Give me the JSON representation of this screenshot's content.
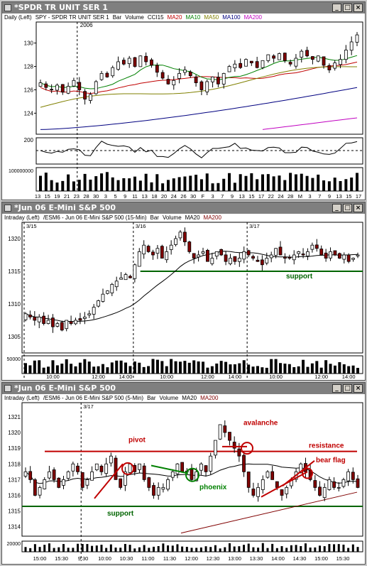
{
  "windows": [
    {
      "title": "*SPDR TR UNIT SER 1",
      "info": [
        "Daily (Left)",
        "SPY - SPDR TR UNIT SER 1",
        "Bar",
        "Volume",
        "CCI15",
        "MA20",
        "MA10",
        "MA50",
        "MA100",
        "MA200"
      ],
      "info_colors": [
        "#000",
        "#000",
        "#000",
        "#000",
        "#000",
        "#c00000",
        "#008000",
        "#808000",
        "#000080",
        "#c000c0"
      ]
    },
    {
      "title": "*Jun 06  E-Mini S&P 500",
      "info": [
        "Intraday (Left)",
        "/ESM6 - Jun 06  E-Mini S&P 500 (15-Min)",
        "Bar",
        "Volume",
        "MA20",
        "MA200"
      ],
      "info_colors": [
        "#000",
        "#000",
        "#000",
        "#000",
        "#000",
        "#800000"
      ]
    },
    {
      "title": "*Jun 06  E-Mini S&P 500",
      "info": [
        "Intraday (Left)",
        "/ESM6 - Jun 06  E-Mini S&P 500 (5-Min)",
        "Bar",
        "Volume",
        "MA20",
        "MA200"
      ],
      "info_colors": [
        "#000",
        "#000",
        "#000",
        "#000",
        "#000",
        "#800000"
      ]
    }
  ],
  "chart_data": [
    {
      "type": "candlestick",
      "interval": "Daily",
      "year_marker": "2006",
      "y_ticks": [
        124,
        126,
        128,
        130
      ],
      "ylim": [
        122.2,
        131.8
      ],
      "x_ticks": [
        "13",
        "15",
        "19",
        "21",
        "23",
        "28",
        "30",
        "3",
        "5",
        "9",
        "11",
        "13",
        "18",
        "20",
        "24",
        "26",
        "30",
        "F",
        "3",
        "7",
        "9",
        "13",
        "15",
        "17",
        "22",
        "24",
        "28",
        "M",
        "3",
        "7",
        "9",
        "13",
        "15",
        "17"
      ],
      "close": [
        126.6,
        126.2,
        126.0,
        126.4,
        125.8,
        126.3,
        126.8,
        126.0,
        125.2,
        125.6,
        126.7,
        127.4,
        127.1,
        127.9,
        128.4,
        128.2,
        128.7,
        128.0,
        128.9,
        128.4,
        128.1,
        127.5,
        127.0,
        126.5,
        126.8,
        127.4,
        127.7,
        127.2,
        126.6,
        126.0,
        126.7,
        127.1,
        126.5,
        127.4,
        128.0,
        128.2,
        127.9,
        128.6,
        128.3,
        127.9,
        128.5,
        129.0,
        128.7,
        129.1,
        128.5,
        128.2,
        128.7,
        129.3,
        128.9,
        128.6,
        128.9,
        128.1,
        127.7,
        128.3,
        128.6,
        129.4,
        130.1,
        130.7
      ],
      "ma_series": [
        {
          "name": "MA10",
          "color": "#008000"
        },
        {
          "name": "MA20",
          "color": "#c00000"
        },
        {
          "name": "MA50",
          "color": "#808000"
        },
        {
          "name": "MA100",
          "color": "#000080"
        },
        {
          "name": "MA200",
          "color": "#c000c0"
        }
      ],
      "cci_tick": "200",
      "volume_tick": "100000000"
    },
    {
      "type": "candlestick",
      "interval": "15-Min",
      "session_labels": [
        "3/15",
        "3/16",
        "3/17"
      ],
      "y_ticks": [
        1305,
        1310,
        1315,
        1320
      ],
      "ylim": [
        1302.5,
        1322.5
      ],
      "x_ticks": [
        "10:00",
        "12:00",
        "14:00",
        "10:00",
        "12:00",
        "14:00",
        "10:00",
        "12:00",
        "14:00"
      ],
      "close": [
        1308.5,
        1308.0,
        1307.5,
        1308.0,
        1307.0,
        1307.5,
        1306.5,
        1307.0,
        1306.0,
        1307.5,
        1307.0,
        1307.5,
        1307.5,
        1308.0,
        1308.5,
        1309.5,
        1310.5,
        1311.5,
        1312.0,
        1313.0,
        1313.5,
        1314.0,
        1314.5,
        1314.0,
        1316.0,
        1318.0,
        1319.0,
        1318.0,
        1317.5,
        1318.5,
        1317.0,
        1318.0,
        1319.0,
        1320.0,
        1321.0,
        1319.5,
        1318.0,
        1317.0,
        1317.5,
        1318.0,
        1316.5,
        1317.0,
        1318.0,
        1317.5,
        1316.5,
        1317.0,
        1316.5,
        1317.0,
        1318.0,
        1317.5,
        1317.0,
        1316.5,
        1316.0,
        1317.0,
        1317.5,
        1318.5,
        1317.5,
        1317.0,
        1317.0,
        1317.5,
        1318.0,
        1317.5,
        1318.0,
        1319.0,
        1318.5,
        1317.5,
        1317.0,
        1318.0,
        1317.5,
        1317.0,
        1317.5,
        1316.5,
        1317.0,
        1317.5
      ],
      "support_level": 1315,
      "annotations": {
        "support": "support"
      },
      "volume_tick": "50000"
    },
    {
      "type": "candlestick",
      "interval": "5-Min",
      "session_label": "3/17",
      "y_ticks": [
        1314,
        1315,
        1316,
        1317,
        1318,
        1319,
        1320,
        1321
      ],
      "ylim": [
        1313.4,
        1321.9
      ],
      "x_ticks": [
        "15:00",
        "15:30",
        "9:30",
        "10:00",
        "10:30",
        "11:00",
        "11:30",
        "12:00",
        "12:30",
        "13:00",
        "13:30",
        "14:00",
        "14:30",
        "15:00",
        "15:30"
      ],
      "close": [
        1317.5,
        1317.0,
        1316.0,
        1316.5,
        1317.0,
        1317.5,
        1317.0,
        1316.5,
        1317.0,
        1317.5,
        1318.0,
        1317.5,
        1316.5,
        1317.0,
        1317.5,
        1318.0,
        1317.5,
        1318.0,
        1318.5,
        1317.0,
        1316.5,
        1317.5,
        1318.0,
        1317.5,
        1318.0,
        1317.0,
        1316.5,
        1316.0,
        1316.5,
        1316.5,
        1317.0,
        1317.5,
        1318.0,
        1317.5,
        1317.5,
        1317.0,
        1317.5,
        1318.0,
        1317.5,
        1318.5,
        1319.5,
        1320.5,
        1320.0,
        1319.5,
        1319.0,
        1318.5,
        1317.5,
        1316.5,
        1316.0,
        1316.5,
        1317.0,
        1317.5,
        1317.0,
        1316.5,
        1316.0,
        1316.5,
        1317.0,
        1317.5,
        1318.0,
        1317.5,
        1317.0,
        1316.5,
        1316.0,
        1316.5,
        1317.0,
        1316.5,
        1316.5,
        1317.0,
        1317.5,
        1317.0,
        1316.5
      ],
      "support_level": 1315.3,
      "resistance_level": 1318.8,
      "annotations": {
        "pivot": "pivot",
        "phoenix": "phoenix",
        "avalanche": "avalanche",
        "resistance": "resistance",
        "bear_flag": "bear flag",
        "support": "support"
      },
      "colors": {
        "annotation": "#c00000",
        "support": "#006400",
        "phoenix": "#008000"
      },
      "volume_tick": "20000"
    }
  ]
}
